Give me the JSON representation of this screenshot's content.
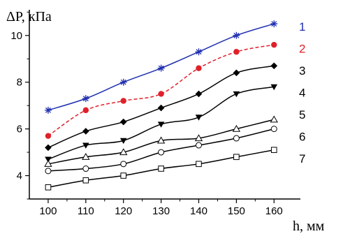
{
  "chart_data": {
    "type": "line",
    "xlabel": "h, мм",
    "ylabel": "ΔP, кПа",
    "x": [
      100,
      110,
      120,
      130,
      140,
      150,
      160
    ],
    "xlim": [
      95,
      167
    ],
    "ylim": [
      3.0,
      11.1
    ],
    "x_ticks": [
      100,
      110,
      120,
      130,
      140,
      150,
      160
    ],
    "y_ticks": [
      4,
      6,
      8,
      10
    ],
    "grid": false,
    "series": [
      {
        "label": "1",
        "marker": "star",
        "line": "solid",
        "color": "#1f2fb0",
        "label_color": "#1f2fb0",
        "values": [
          6.8,
          7.3,
          8.0,
          8.6,
          9.3,
          10.0,
          10.5
        ]
      },
      {
        "label": "2",
        "marker": "filled-circle",
        "line": "dashed",
        "color": "#e0202a",
        "label_color": "#e0202a",
        "values": [
          5.7,
          6.8,
          7.2,
          7.5,
          8.6,
          9.3,
          9.6
        ]
      },
      {
        "label": "3",
        "marker": "filled-diamond",
        "line": "solid",
        "color": "#000000",
        "label_color": "#000000",
        "values": [
          5.2,
          5.9,
          6.3,
          6.9,
          7.5,
          8.4,
          8.7
        ]
      },
      {
        "label": "4",
        "marker": "filled-triangle-down",
        "line": "solid",
        "color": "#000000",
        "label_color": "#000000",
        "values": [
          4.7,
          5.3,
          5.5,
          6.2,
          6.5,
          7.5,
          7.8
        ]
      },
      {
        "label": "5",
        "marker": "open-triangle-up",
        "line": "solid",
        "color": "#000000",
        "label_color": "#000000",
        "values": [
          4.5,
          4.8,
          5.0,
          5.5,
          5.6,
          6.0,
          6.4
        ]
      },
      {
        "label": "6",
        "marker": "open-circle",
        "line": "solid",
        "color": "#000000",
        "label_color": "#000000",
        "values": [
          4.2,
          4.3,
          4.5,
          5.0,
          5.3,
          5.6,
          6.0
        ]
      },
      {
        "label": "7",
        "marker": "open-square",
        "line": "solid",
        "color": "#000000",
        "label_color": "#000000",
        "values": [
          3.5,
          3.8,
          4.0,
          4.3,
          4.5,
          4.8,
          5.1
        ]
      }
    ]
  }
}
